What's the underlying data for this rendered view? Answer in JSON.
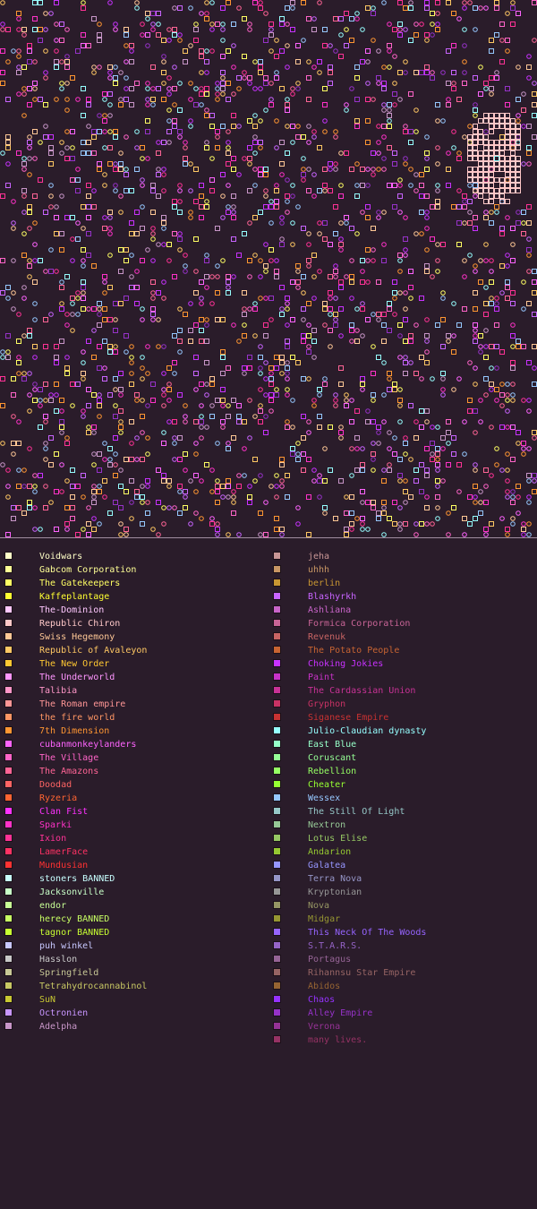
{
  "legend": {
    "left": [
      {
        "name": "Voidwars",
        "color": "#ffffc8"
      },
      {
        "name": "Gabcom Corporation",
        "color": "#ffff96"
      },
      {
        "name": "The Gatekeepers",
        "color": "#ffff64"
      },
      {
        "name": "Kaffeplantage",
        "color": "#ffff32"
      },
      {
        "name": "The-Dominion",
        "color": "#ffc8ff"
      },
      {
        "name": "Republic Chiron",
        "color": "#ffc8c8"
      },
      {
        "name": "Swiss Hegemony",
        "color": "#ffc896"
      },
      {
        "name": "Republic of Avaleyon",
        "color": "#ffc864"
      },
      {
        "name": "The New Order",
        "color": "#ffc832"
      },
      {
        "name": "The Underworld",
        "color": "#ff96ff"
      },
      {
        "name": "Talibia",
        "color": "#ff96c8"
      },
      {
        "name": "The Roman empire",
        "color": "#ff9696"
      },
      {
        "name": "the fire world",
        "color": "#ff9664"
      },
      {
        "name": "7th Dimension",
        "color": "#ff9632"
      },
      {
        "name": "cubanmonkeylanders",
        "color": "#ff64ff"
      },
      {
        "name": "The Village",
        "color": "#ff64c8"
      },
      {
        "name": "The Amazons",
        "color": "#ff6496"
      },
      {
        "name": "Doodad",
        "color": "#ff6464"
      },
      {
        "name": "Ryzeria",
        "color": "#ff6432"
      },
      {
        "name": "Clan Fist",
        "color": "#ff32ff"
      },
      {
        "name": "Sparki",
        "color": "#ff32c8"
      },
      {
        "name": "Ixion",
        "color": "#ff3296"
      },
      {
        "name": "LamerFace",
        "color": "#ff3264"
      },
      {
        "name": "Mundusian",
        "color": "#ff3232"
      },
      {
        "name": "stoners BANNED",
        "color": "#c8ffff"
      },
      {
        "name": "Jacksonville",
        "color": "#c8ffc8"
      },
      {
        "name": "endor",
        "color": "#c8ff96"
      },
      {
        "name": "herecy BANNED",
        "color": "#c8ff64"
      },
      {
        "name": "tagnor BANNED",
        "color": "#c8ff32"
      },
      {
        "name": "puh winkel",
        "color": "#c8c8ff"
      },
      {
        "name": "Hasslon",
        "color": "#c8c8c8"
      },
      {
        "name": "Springfield",
        "color": "#c8c896"
      },
      {
        "name": "Tetrahydrocannabinol",
        "color": "#c8c864"
      },
      {
        "name": "SuN",
        "color": "#c8c832"
      },
      {
        "name": "Octronien",
        "color": "#c896ff"
      },
      {
        "name": "Adelpha",
        "color": "#c896c8"
      }
    ],
    "right": [
      {
        "name": "jeha",
        "color": "#c89696"
      },
      {
        "name": "uhhh",
        "color": "#c89664"
      },
      {
        "name": "berlin",
        "color": "#c89632"
      },
      {
        "name": "Blashyrkh",
        "color": "#c864ff"
      },
      {
        "name": "Ashliana",
        "color": "#c864c8"
      },
      {
        "name": "Formica Corporation",
        "color": "#c86496"
      },
      {
        "name": "Revenuk",
        "color": "#c86464"
      },
      {
        "name": "The Potato People",
        "color": "#c86432"
      },
      {
        "name": "Choking Jokies",
        "color": "#c832ff"
      },
      {
        "name": "Paint",
        "color": "#c832c8"
      },
      {
        "name": "The Cardassian Union",
        "color": "#c83296"
      },
      {
        "name": "Gryphon",
        "color": "#c83264"
      },
      {
        "name": "Siganese Empire",
        "color": "#c83232"
      },
      {
        "name": "Julio-Claudian dynasty",
        "color": "#96ffff"
      },
      {
        "name": "East Blue",
        "color": "#96ffc8"
      },
      {
        "name": "Coruscant",
        "color": "#96ff96"
      },
      {
        "name": "Rebellion",
        "color": "#96ff64"
      },
      {
        "name": "Cheater",
        "color": "#96ff32"
      },
      {
        "name": "Wessex",
        "color": "#96c8ff"
      },
      {
        "name": "The Still Of Light",
        "color": "#96c8c8"
      },
      {
        "name": "Nextron",
        "color": "#96c896"
      },
      {
        "name": "Lotus Elise",
        "color": "#96c864"
      },
      {
        "name": "Andarion",
        "color": "#96c832"
      },
      {
        "name": "Galatea",
        "color": "#9696ff"
      },
      {
        "name": "Terra Nova",
        "color": "#9696c8"
      },
      {
        "name": "Kryptonian",
        "color": "#969696"
      },
      {
        "name": "Nova",
        "color": "#969664"
      },
      {
        "name": "Midgar",
        "color": "#969632"
      },
      {
        "name": "This Neck Of The Woods",
        "color": "#9664ff"
      },
      {
        "name": "S.T.A.R.S.",
        "color": "#9664c8"
      },
      {
        "name": "Portagus",
        "color": "#966496"
      },
      {
        "name": "Rihannsu Star Empire",
        "color": "#966464"
      },
      {
        "name": "Abidos",
        "color": "#966432"
      },
      {
        "name": "Chaos",
        "color": "#9632ff"
      },
      {
        "name": "Alley Empire",
        "color": "#9632c8"
      },
      {
        "name": "Verona",
        "color": "#963296"
      },
      {
        "name": "many lives.",
        "color": "#963264"
      }
    ]
  }
}
